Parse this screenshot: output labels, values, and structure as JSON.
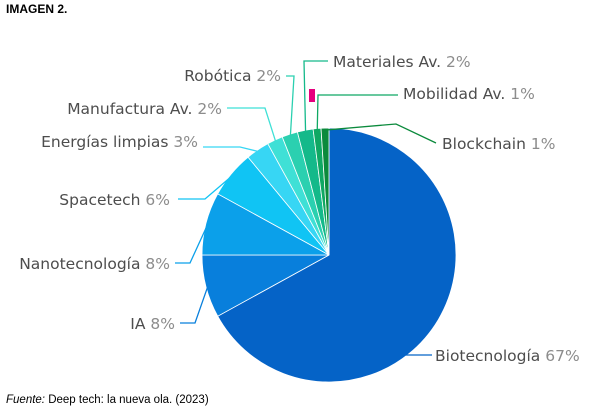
{
  "heading": "IMAGEN 2.",
  "source": {
    "label": "Fuente:",
    "text": " Deep tech: la nueva ola. (2023)"
  },
  "marker_color": "#e6007e",
  "chart_data": {
    "type": "pie",
    "start_angle_deg": 0,
    "direction": "clockwise",
    "slices": [
      {
        "name": "Biotecnología",
        "pct_label": "67%",
        "value": 67,
        "color": "#0563c7"
      },
      {
        "name": "IA",
        "pct_label": "8%",
        "value": 8,
        "color": "#087fdc"
      },
      {
        "name": "Nanotecnología",
        "pct_label": "8%",
        "value": 8,
        "color": "#0ba0ea"
      },
      {
        "name": "Spacetech",
        "pct_label": "6%",
        "value": 6,
        "color": "#10c4f4"
      },
      {
        "name": "Energías limpias",
        "pct_label": "3%",
        "value": 3,
        "color": "#37d6f4"
      },
      {
        "name": "Manufactura Av.",
        "pct_label": "2%",
        "value": 2,
        "color": "#3fe0d6"
      },
      {
        "name": "Robótica",
        "pct_label": "2%",
        "value": 2,
        "color": "#2bd0b0"
      },
      {
        "name": "Materiales Av.",
        "pct_label": "2%",
        "value": 2,
        "color": "#14b98a"
      },
      {
        "name": "Mobilidad Av.",
        "pct_label": "1%",
        "value": 1,
        "color": "#0fa863"
      },
      {
        "name": "Blockchain",
        "pct_label": "1%",
        "value": 1,
        "color": "#0b8a3c"
      }
    ]
  }
}
